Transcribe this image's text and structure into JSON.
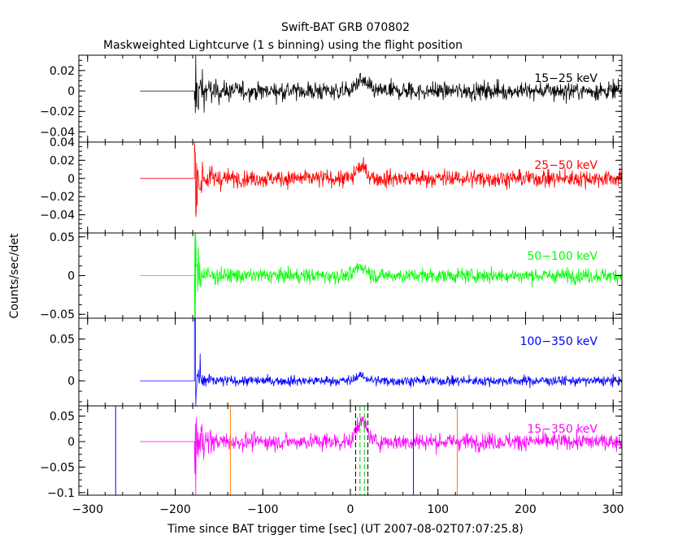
{
  "chart_data": {
    "type": "line",
    "title": "Swift-BAT GRB 070802",
    "subtitle": "Maskweighted Lightcurve (1 s binning) using the flight position",
    "xlabel": "Time since BAT trigger time [sec] (UT 2007-08-02T07:07:25.8)",
    "ylabel": "Counts/sec/det",
    "xlim": [
      -310,
      310
    ],
    "x_ticks": [
      -300,
      -200,
      -100,
      0,
      100,
      200,
      300
    ],
    "x_tick_labels": [
      "−300",
      "−200",
      "−100",
      "0",
      "100",
      "200",
      "300"
    ],
    "data_start": -240,
    "trigger_onset": -178,
    "bin_seconds": 1,
    "panels": [
      {
        "name": "15−25 keV",
        "color": "#000000",
        "ylim": [
          -0.05,
          0.035
        ],
        "y_ticks": [
          0.02,
          0,
          -0.02,
          -0.04
        ],
        "y_tick_labels": [
          "0.02",
          "0",
          "−0.02",
          "−0.04"
        ],
        "noise": 0.0075,
        "spike": 0.025,
        "bump": 0.01
      },
      {
        "name": "25−50 keV",
        "color": "#ff0000",
        "ylim": [
          -0.06,
          0.04
        ],
        "y_ticks": [
          0.04,
          0.02,
          0,
          -0.02,
          -0.04
        ],
        "y_tick_labels": [
          "0.04",
          "0.02",
          "0",
          "−0.02",
          "−0.04"
        ],
        "noise": 0.008,
        "spike": 0.03,
        "bump": 0.012
      },
      {
        "name": "50−100 keV",
        "color": "#00ff00",
        "ylim": [
          -0.055,
          0.055
        ],
        "y_ticks": [
          0.05,
          0,
          -0.05
        ],
        "y_tick_labels": [
          "0.05",
          "0",
          "−0.05"
        ],
        "noise": 0.008,
        "spike": 0.05,
        "bump": 0.012
      },
      {
        "name": "100−350 keV",
        "color": "#0000ff",
        "ylim": [
          -0.03,
          0.075
        ],
        "y_ticks": [
          0.05,
          0
        ],
        "y_tick_labels": [
          "0.05",
          "0"
        ],
        "noise": 0.005,
        "spike": 0.06,
        "bump": 0.006
      },
      {
        "name": "15−350 keV",
        "color": "#ff00ff",
        "ylim": [
          -0.105,
          0.07
        ],
        "y_ticks": [
          0.05,
          0,
          -0.05,
          -0.1
        ],
        "y_tick_labels": [
          "0.05",
          "0",
          "−0.05",
          "−0.1"
        ],
        "noise": 0.014,
        "spike": 0.06,
        "bump": 0.04
      }
    ],
    "markers": [
      {
        "x": -268,
        "color": "#0000ff",
        "style": "solid"
      },
      {
        "x": 72,
        "color": "#0000ff",
        "style": "solid"
      },
      {
        "x": -137,
        "color": "#ff8000",
        "style": "solid"
      },
      {
        "x": 122,
        "color": "#ff8000",
        "style": "solid"
      },
      {
        "x": 6,
        "color": "#000000",
        "style": "dashed"
      },
      {
        "x": 20,
        "color": "#000000",
        "style": "dashed"
      },
      {
        "x": 11,
        "color": "#00cc00",
        "style": "dashed"
      },
      {
        "x": 16,
        "color": "#00cc00",
        "style": "dashed"
      }
    ]
  }
}
